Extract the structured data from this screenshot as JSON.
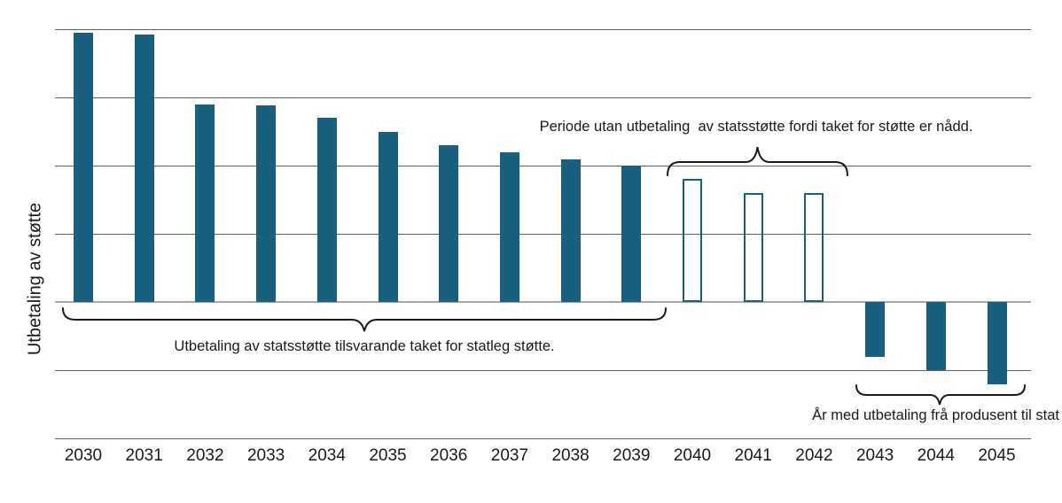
{
  "chart_data": {
    "type": "bar",
    "title": "",
    "xlabel": "",
    "ylabel": "Utbetaling av støtte",
    "categories": [
      "2030",
      "2031",
      "2032",
      "2033",
      "2034",
      "2035",
      "2036",
      "2037",
      "2038",
      "2039",
      "2040",
      "2041",
      "2042",
      "2043",
      "2044",
      "2045"
    ],
    "series": [
      {
        "name": "Utbetaling av støtte",
        "values": [
          3.95,
          3.92,
          2.9,
          2.88,
          2.7,
          2.49,
          2.3,
          2.19,
          2.09,
          2.0,
          1.81,
          1.6,
          1.6,
          -0.8,
          -1.0,
          -1.21
        ],
        "bar_styles": [
          "solid",
          "solid",
          "solid",
          "solid",
          "solid",
          "solid",
          "solid",
          "solid",
          "solid",
          "solid",
          "hollow",
          "hollow",
          "hollow",
          "solid",
          "solid",
          "solid"
        ]
      }
    ],
    "ylim": [
      -2,
      4
    ],
    "gridline_values": [
      4,
      3,
      2,
      1,
      0,
      -1,
      -2
    ],
    "grid": "horizontal",
    "legend_position": "none",
    "annotations": [
      {
        "id": "cap-period",
        "text": "Periode utan utbetaling  av statsstøtte fordi taket for støtte er nådd.",
        "target_years": [
          "2040",
          "2041",
          "2042"
        ],
        "position": "above-bars-with-brace"
      },
      {
        "id": "state-support",
        "text": "Utbetaling av statsstøtte tilsvarande taket for statleg støtte.",
        "target_years": [
          "2030",
          "2039"
        ],
        "position": "below-zero-line-with-brace"
      },
      {
        "id": "producer-payment",
        "text": "År med utbetaling frå produsent til stat",
        "target_years": [
          "2043",
          "2045"
        ],
        "position": "below-negative-bars-with-brace"
      }
    ]
  },
  "colors": {
    "bar_fill": "#19607E",
    "bar_outline": "#19607E",
    "gridline": "#5F5F5F",
    "zero_line": "#A6A6A6",
    "text": "#1A1A1A",
    "background": "#FFFFFF"
  }
}
